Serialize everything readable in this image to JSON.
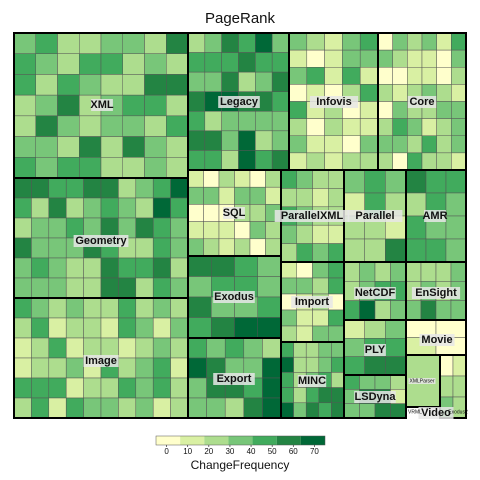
{
  "chart_data": {
    "type": "treemap",
    "title": "PageRank",
    "size_variable": "PageRank",
    "color_variable": "ChangeFrequency",
    "palette": [
      "#ffffcc",
      "#d9f0a3",
      "#addd8e",
      "#78c679",
      "#41ab5d",
      "#238443",
      "#006837"
    ],
    "legend": {
      "title": "ChangeFrequency",
      "ticks": [
        0,
        10,
        20,
        30,
        40,
        50,
        60,
        70
      ],
      "range": [
        -5,
        75
      ],
      "placement": "bottom"
    },
    "groups": [
      {
        "name": "XML",
        "cells": 55,
        "mean_change": 33
      },
      {
        "name": "Legacy",
        "cells": 36,
        "mean_change": 38
      },
      {
        "name": "Infovis",
        "cells": 40,
        "mean_change": 22
      },
      {
        "name": "Core",
        "cells": 45,
        "mean_change": 18
      },
      {
        "name": "Geometry",
        "cells": 60,
        "mean_change": 38
      },
      {
        "name": "SQL",
        "cells": 30,
        "mean_change": 14
      },
      {
        "name": "ParallelXML",
        "cells": 20,
        "mean_change": 22
      },
      {
        "name": "Parallel",
        "cells": 12,
        "mean_change": 28
      },
      {
        "name": "AMR",
        "cells": 12,
        "mean_change": 40
      },
      {
        "name": "Exodus",
        "cells": 16,
        "mean_change": 45
      },
      {
        "name": "Import",
        "cells": 18,
        "mean_change": 20
      },
      {
        "name": "NetCDF",
        "cells": 12,
        "mean_change": 38
      },
      {
        "name": "EnSight",
        "cells": 12,
        "mean_change": 33
      },
      {
        "name": "Image",
        "cells": 60,
        "mean_change": 25
      },
      {
        "name": "Export",
        "cells": 18,
        "mean_change": 42
      },
      {
        "name": "MINC",
        "cells": 24,
        "mean_change": 38
      },
      {
        "name": "PLY",
        "cells": 8,
        "mean_change": 33
      },
      {
        "name": "Movie",
        "cells": 4,
        "mean_change": 8
      },
      {
        "name": "LSDyna",
        "cells": 10,
        "mean_change": 33
      },
      {
        "name": "XMLParser",
        "cells": 1,
        "mean_change": 5
      },
      {
        "name": "Video",
        "cells": 4,
        "mean_change": 15
      },
      {
        "name": "VRML",
        "cells": 1,
        "mean_change": 10
      },
      {
        "name": "Exodus2",
        "cells": 1,
        "mean_change": 30
      }
    ],
    "visible_group_labels": [
      "XML",
      "Legacy",
      "Infovis",
      "Core",
      "Geometry",
      "SQL",
      "ParallelXML",
      "Parallel",
      "AMR",
      "Exodus",
      "Import",
      "NetCDF",
      "EnSight",
      "Image",
      "Export",
      "MINC",
      "PLY",
      "Movie",
      "LSDyna",
      "XMLParser",
      "Video"
    ],
    "tiny_labels": [
      "VRML",
      "Exodus2"
    ]
  }
}
